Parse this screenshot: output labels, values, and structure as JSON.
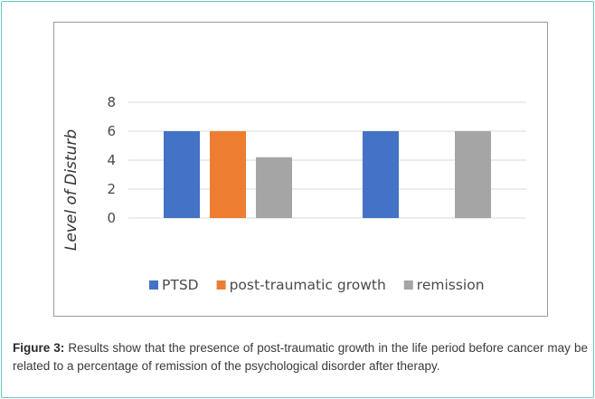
{
  "chart_data": {
    "type": "bar",
    "categories": [
      "",
      ""
    ],
    "series": [
      {
        "name": "PTSD",
        "color": "#4472c4",
        "values": [
          6,
          6
        ]
      },
      {
        "name": "post-traumatic growth",
        "color": "#ed7d31",
        "values": [
          6,
          null
        ]
      },
      {
        "name": "remission",
        "color": "#a5a5a5",
        "values": [
          4.2,
          6
        ]
      }
    ],
    "ylabel": "Level of Disturb",
    "yticks": [
      0,
      2,
      4,
      6,
      8
    ],
    "ylim": [
      0,
      8
    ],
    "grid": true,
    "legend": "bottom"
  },
  "caption": {
    "label": "Figure 3:",
    "text": " Results show that the presence of post-traumatic growth in the life period before cancer may be related to a percentage of remission of the psychological disorder after therapy."
  }
}
